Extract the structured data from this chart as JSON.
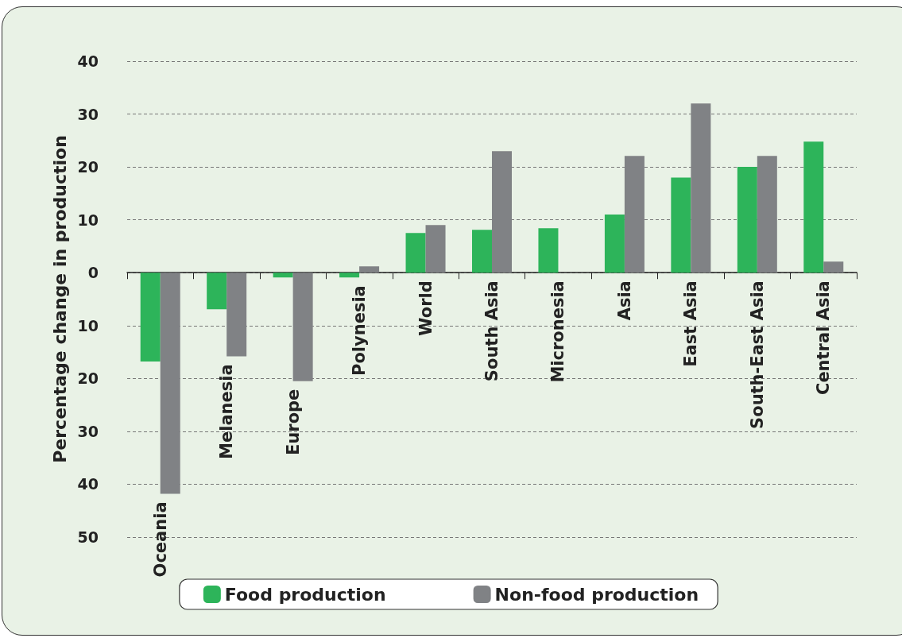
{
  "chart_data": {
    "type": "bar",
    "ylabel": "Percentage change in production",
    "categories": [
      "Oceania",
      "Melanesia",
      "Europe",
      "Polynesia",
      "World",
      "South Asia",
      "Micronesia",
      "Asia",
      "East Asia",
      "South-East Asia",
      "Central Asia"
    ],
    "series": [
      {
        "name": "Food production",
        "color": "#2db45a",
        "values": [
          -16.8,
          -6.9,
          -0.9,
          -0.9,
          7.5,
          8.1,
          8.4,
          11.0,
          18.0,
          20.0,
          24.8
        ]
      },
      {
        "name": "Non-food production",
        "color": "#808285",
        "values": [
          -41.8,
          -15.8,
          -20.5,
          1.2,
          9.0,
          23.0,
          null,
          22.1,
          32.0,
          22.1,
          2.1
        ]
      }
    ],
    "ylim": [
      -50,
      40
    ],
    "yticks": [
      {
        "value": -50,
        "label": "50"
      },
      {
        "value": -40,
        "label": "40"
      },
      {
        "value": -30,
        "label": "30"
      },
      {
        "value": -20,
        "label": "20"
      },
      {
        "value": -10,
        "label": "10"
      },
      0,
      10,
      20,
      30,
      40
    ],
    "grid": "y",
    "legend": "bottom"
  }
}
